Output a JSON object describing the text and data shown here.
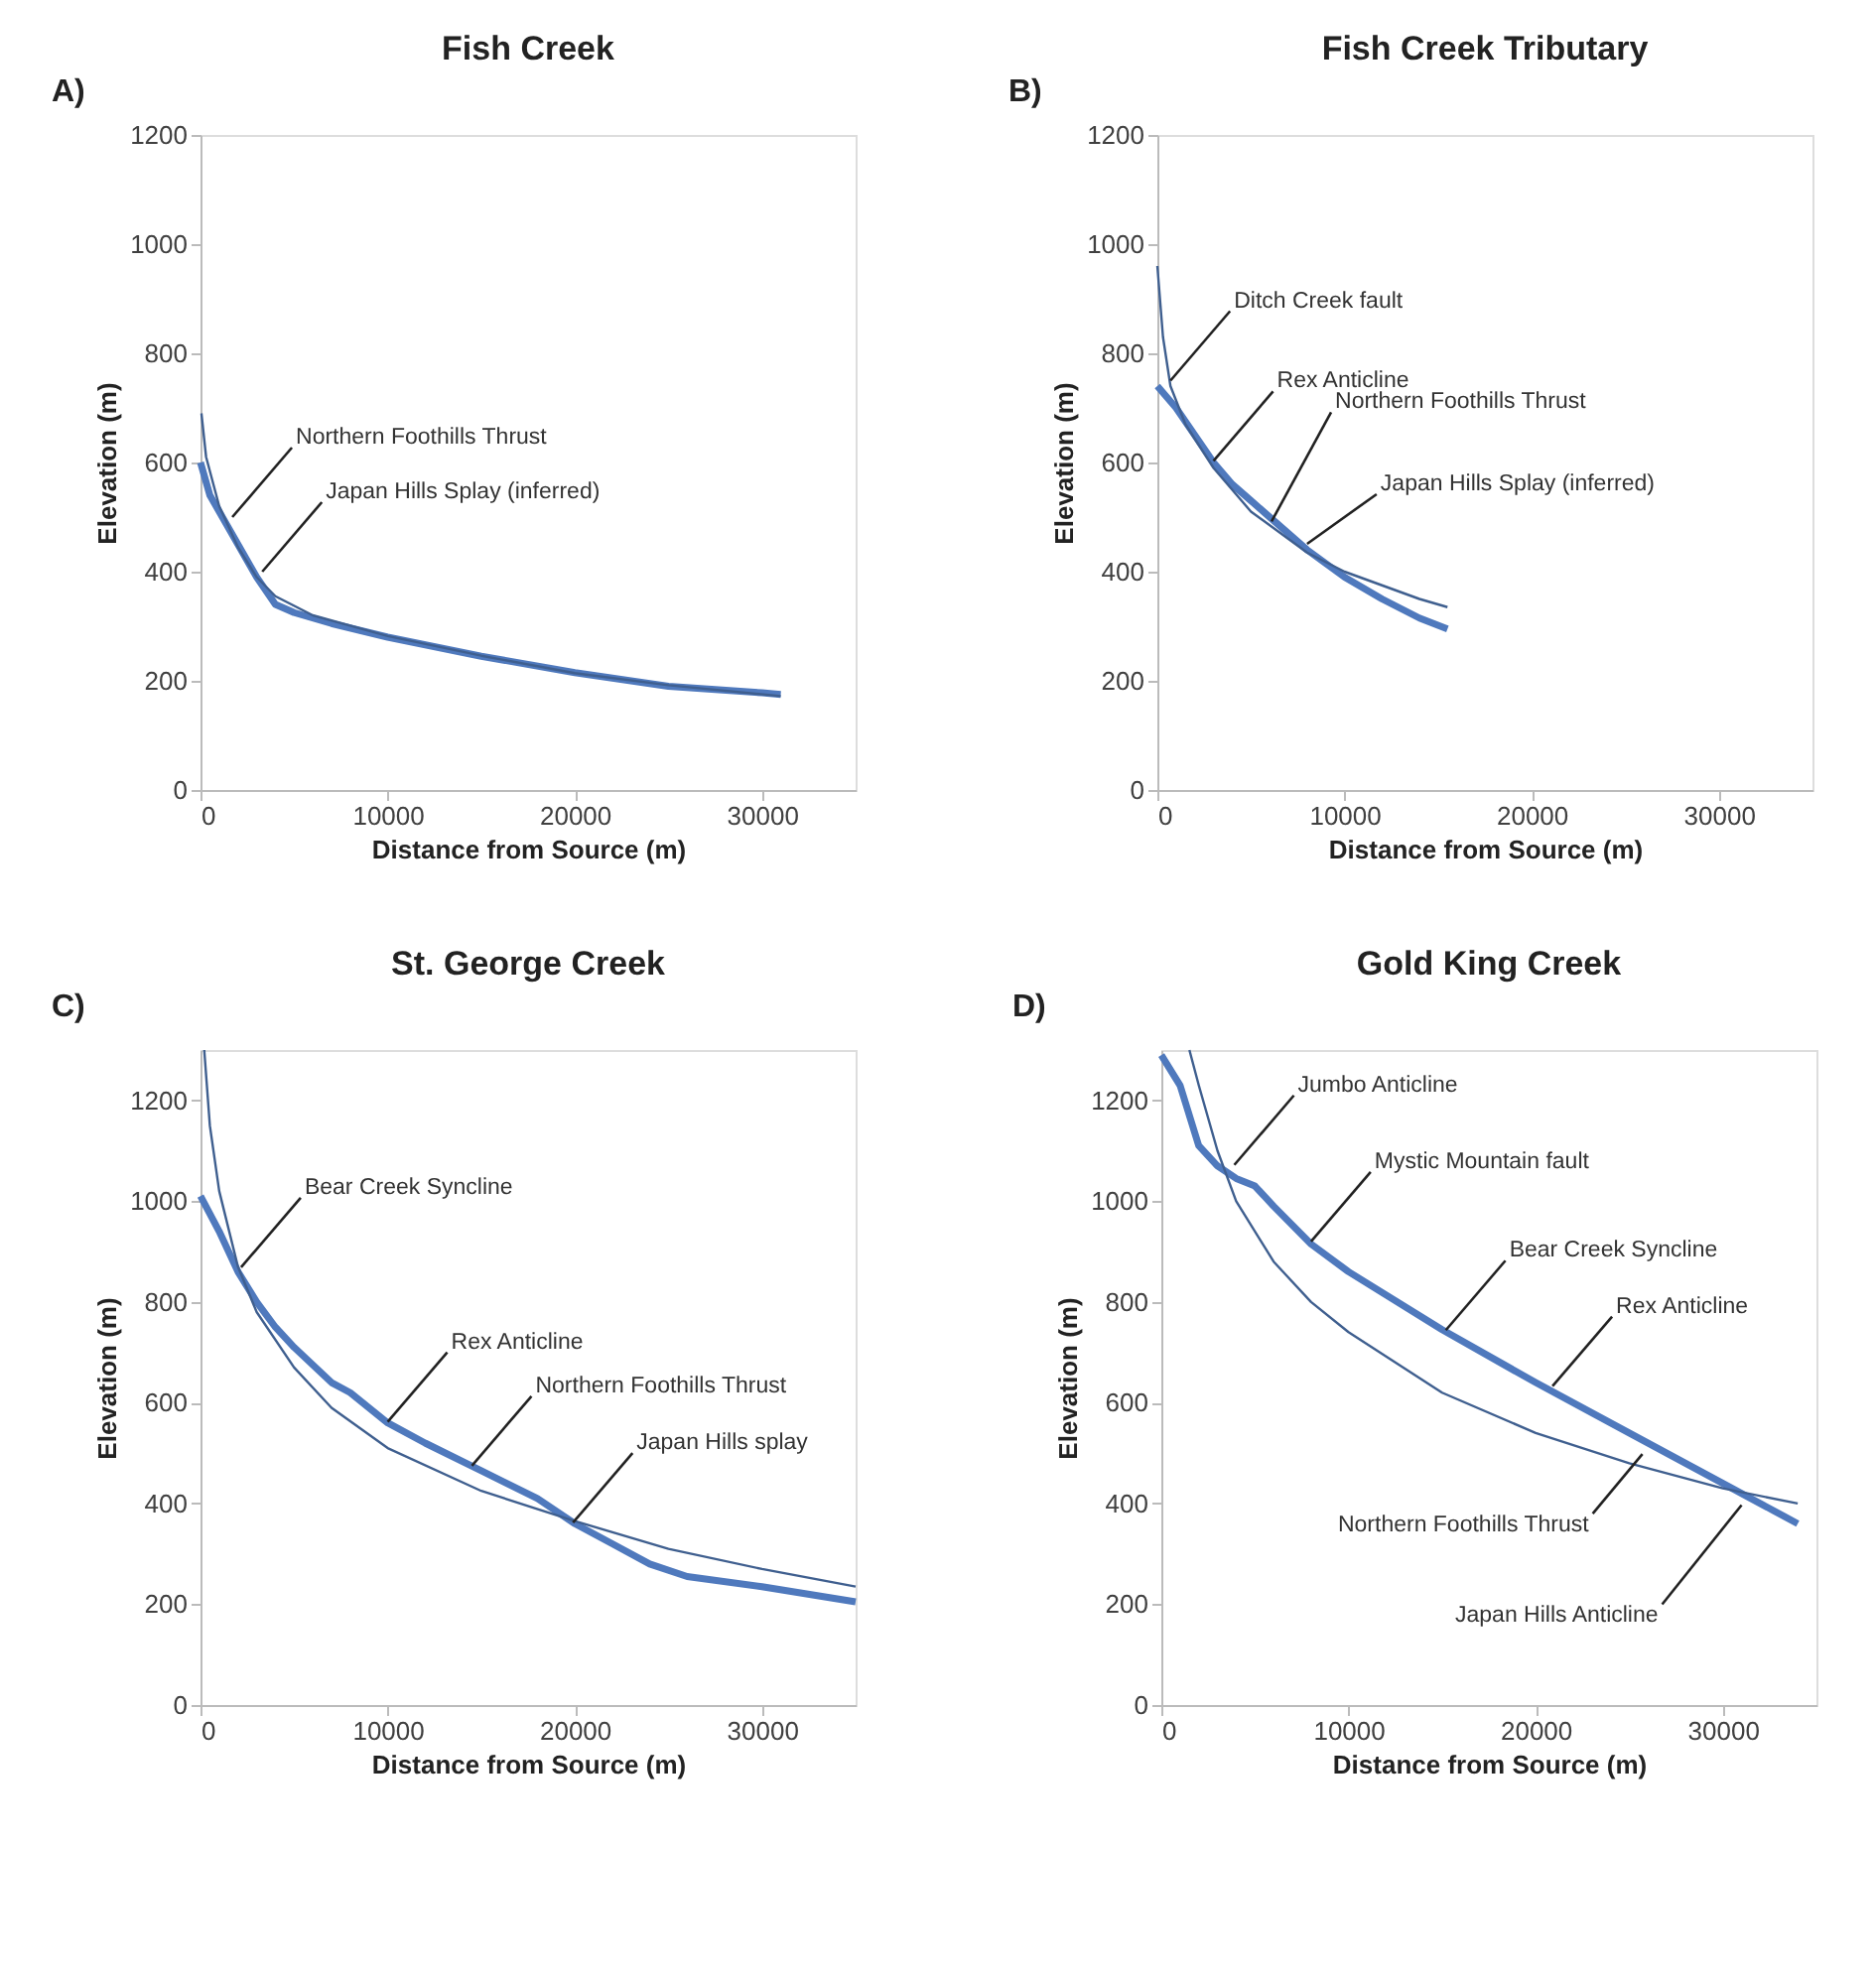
{
  "chart_data": [
    {
      "type": "line",
      "title": "Fish Creek",
      "xlabel": "Distance from Source (m)",
      "ylabel": "Elevation (m)",
      "xlim": [
        0,
        35000
      ],
      "ylim": [
        0,
        1200
      ],
      "xticks": [
        0,
        10000,
        20000,
        30000
      ],
      "yticks": [
        0,
        200,
        400,
        600,
        800,
        1000,
        1200
      ],
      "grid": false,
      "series": [
        {
          "color": "#4f79bd",
          "x": [
            0,
            500,
            1000,
            2000,
            3000,
            4000,
            5000,
            7000,
            10000,
            15000,
            20000,
            25000,
            30000,
            31000
          ],
          "values": [
            600,
            540,
            510,
            450,
            390,
            340,
            325,
            305,
            280,
            245,
            215,
            190,
            178,
            175
          ]
        },
        {
          "color": "#3f5f8f",
          "x": [
            50,
            300,
            1000,
            2000,
            3000,
            4000,
            6000,
            10000,
            15000,
            20000,
            25000,
            31000
          ],
          "values": [
            690,
            610,
            520,
            445,
            390,
            355,
            320,
            282,
            246,
            214,
            192,
            172
          ]
        }
      ],
      "annotations": [
        "A)",
        {
          "text": "Northern Foothills Thrust",
          "x": 1700,
          "y": 500
        },
        {
          "text": "Japan Hills Splay (inferred)",
          "x": 3300,
          "y": 400
        }
      ]
    },
    {
      "type": "line",
      "title": "Fish Creek Tributary",
      "xlabel": "Distance from Source (m)",
      "ylabel": "Elevation (m)",
      "xlim": [
        0,
        35000
      ],
      "ylim": [
        0,
        1200
      ],
      "xticks": [
        0,
        10000,
        20000,
        30000
      ],
      "yticks": [
        0,
        200,
        400,
        600,
        800,
        1000,
        1200
      ],
      "grid": false,
      "series": [
        {
          "color": "#4f79bd",
          "x": [
            0,
            1000,
            2000,
            3000,
            4000,
            5000,
            6000,
            7000,
            8000,
            9000,
            10000,
            12000,
            14000,
            15500
          ],
          "values": [
            740,
            700,
            650,
            600,
            560,
            530,
            500,
            470,
            440,
            415,
            390,
            350,
            315,
            295
          ]
        },
        {
          "color": "#3f5f8f",
          "x": [
            0,
            300,
            700,
            1500,
            3000,
            5000,
            7000,
            8000,
            10000,
            12000,
            14000,
            15500
          ],
          "values": [
            960,
            830,
            740,
            670,
            590,
            510,
            460,
            435,
            400,
            375,
            350,
            335
          ]
        }
      ],
      "annotations": [
        "B)",
        {
          "text": "Ditch Creek fault",
          "x": 700,
          "y": 750
        },
        {
          "text": "Rex Anticline",
          "x": 3000,
          "y": 603
        },
        {
          "text": "Northern Foothills Thrust",
          "x": 6100,
          "y": 492
        },
        {
          "text": "Japan Hills Splay (inferred)",
          "x": 8000,
          "y": 451
        }
      ]
    },
    {
      "type": "line",
      "title": "St. George Creek",
      "xlabel": "Distance from Source (m)",
      "ylabel": "Elevation (m)",
      "xlim": [
        0,
        35000
      ],
      "ylim": [
        0,
        1300
      ],
      "xticks": [
        0,
        10000,
        20000,
        30000
      ],
      "yticks": [
        0,
        200,
        400,
        600,
        800,
        1000,
        1200
      ],
      "grid": false,
      "series": [
        {
          "color": "#4f79bd",
          "x": [
            0,
            1000,
            2000,
            3000,
            4000,
            5000,
            7000,
            8000,
            10000,
            12000,
            15000,
            18000,
            20000,
            22000,
            24000,
            26000,
            30000,
            35000
          ],
          "values": [
            1010,
            940,
            860,
            800,
            750,
            710,
            640,
            620,
            560,
            520,
            465,
            410,
            360,
            320,
            280,
            255,
            235,
            205
          ]
        },
        {
          "color": "#3f5f8f",
          "x": [
            200,
            500,
            1000,
            2000,
            3000,
            5000,
            7000,
            10000,
            15000,
            20000,
            25000,
            30000,
            35000
          ],
          "values": [
            1300,
            1150,
            1020,
            870,
            780,
            670,
            590,
            510,
            425,
            365,
            310,
            270,
            235
          ]
        }
      ],
      "annotations": [
        "C)",
        {
          "text": "Bear Creek Syncline",
          "x": 2170,
          "y": 869
        },
        {
          "text": "Rex Anticline",
          "x": 10000,
          "y": 562
        },
        {
          "text": "Northern Foothills Thrust",
          "x": 14500,
          "y": 475
        },
        {
          "text": "Japan Hills splay",
          "x": 19900,
          "y": 362
        }
      ]
    },
    {
      "type": "line",
      "title": "Gold King Creek",
      "xlabel": "Distance from Source (m)",
      "ylabel": "Elevation (m)",
      "xlim": [
        0,
        35000
      ],
      "ylim": [
        0,
        1300
      ],
      "xticks": [
        0,
        10000,
        20000,
        30000
      ],
      "yticks": [
        0,
        200,
        400,
        600,
        800,
        1000,
        1200
      ],
      "grid": false,
      "series": [
        {
          "color": "#4f79bd",
          "x": [
            0,
            1000,
            2000,
            3000,
            4000,
            5000,
            6000,
            8000,
            10000,
            15000,
            20000,
            25000,
            30000,
            34000
          ],
          "values": [
            1290,
            1230,
            1110,
            1070,
            1045,
            1030,
            990,
            915,
            860,
            745,
            640,
            540,
            440,
            360
          ]
        },
        {
          "color": "#3f5f8f",
          "x": [
            1500,
            2000,
            3000,
            4000,
            6000,
            8000,
            10000,
            15000,
            20000,
            25000,
            30000,
            34000
          ],
          "values": [
            1300,
            1230,
            1100,
            1000,
            880,
            800,
            740,
            620,
            540,
            480,
            430,
            400
          ]
        }
      ],
      "annotations": [
        "D)",
        {
          "text": "Jumbo Anticline",
          "x": 3900,
          "y": 1072
        },
        {
          "text": "Mystic Mountain fault",
          "x": 8000,
          "y": 920
        },
        {
          "text": "Bear Creek Syncline",
          "x": 15200,
          "y": 744
        },
        {
          "text": "Rex Anticline",
          "x": 20900,
          "y": 633
        },
        {
          "text": "Northern Foothills Thrust",
          "x": 25700,
          "y": 498
        },
        {
          "text": "Japan Hills Anticline",
          "x": 31000,
          "y": 397
        }
      ]
    }
  ]
}
